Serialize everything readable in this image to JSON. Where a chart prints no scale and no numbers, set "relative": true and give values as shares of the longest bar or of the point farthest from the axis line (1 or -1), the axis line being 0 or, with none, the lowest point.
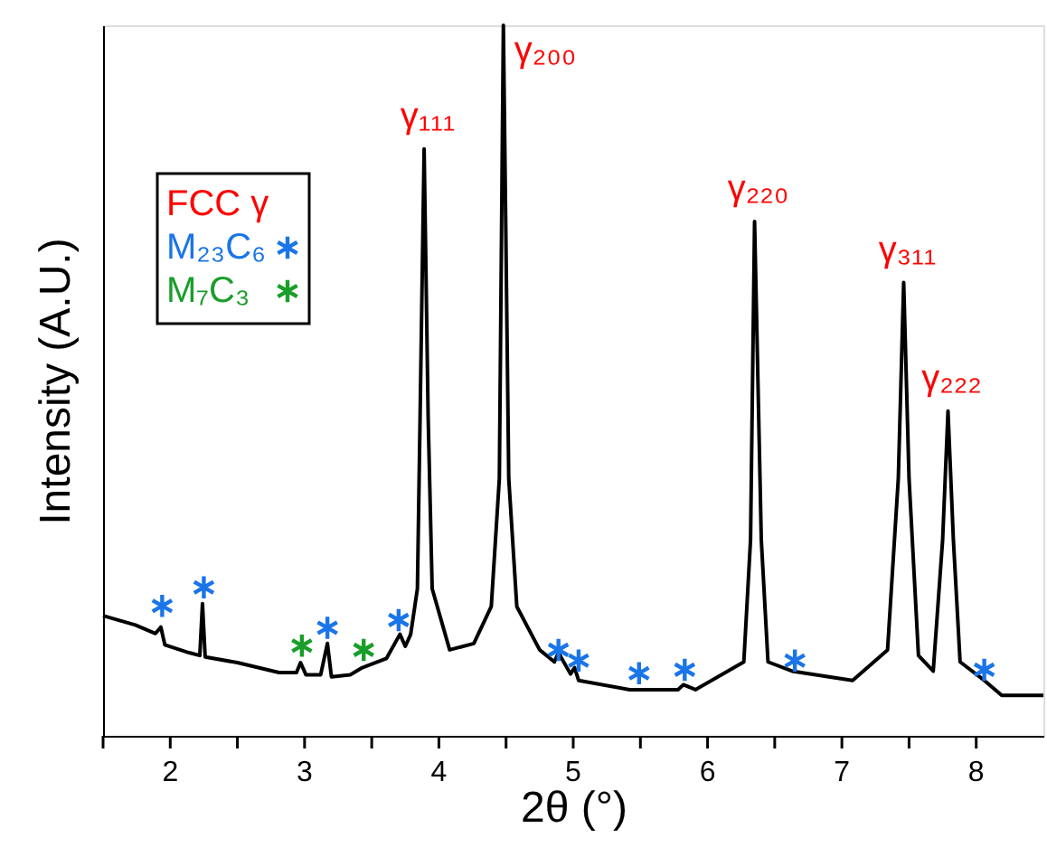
{
  "chart_data": {
    "type": "line",
    "xlabel": "2θ (°)",
    "ylabel": "Intensity (A.U.)",
    "relative": true,
    "xlim": [
      1.5,
      8.5
    ],
    "xticks": [
      {
        "value": 1.5,
        "label": null
      },
      2,
      {
        "value": 2.5,
        "label": null
      },
      3,
      {
        "value": 3.5,
        "label": null
      },
      4,
      {
        "value": 4.5,
        "label": null
      },
      5,
      {
        "value": 5.5,
        "label": null
      },
      6,
      {
        "value": 6.5,
        "label": null
      },
      7,
      {
        "value": 7.5,
        "label": null
      },
      8
    ],
    "legend": "top left",
    "annotations": [
      "FCC γ",
      {
        "text": "γ₁₁₁",
        "x": 3.89,
        "y": 0.826
      },
      {
        "text": "γ₂₀₀",
        "x": 4.48,
        "y": 1.0
      },
      {
        "text": "γ₂₂₀",
        "x": 6.35,
        "y": 0.724
      },
      {
        "text": "γ₃₁₁",
        "x": 7.46,
        "y": 0.638
      },
      {
        "text": "γ₂₂₂",
        "x": 7.79,
        "y": 0.457
      }
    ],
    "grid": false,
    "line_style": "solid",
    "series": [
      {
        "color": "#000000",
        "x": [
          1.5,
          1.74,
          1.89,
          1.93,
          1.96,
          2.14,
          2.22,
          2.24,
          2.26,
          2.5,
          2.81,
          2.94,
          2.97,
          3.01,
          3.12,
          3.17,
          3.2,
          3.34,
          3.43,
          3.61,
          3.71,
          3.75,
          3.79,
          3.84,
          3.86,
          3.89,
          3.92,
          3.95,
          4.08,
          4.26,
          4.39,
          4.45,
          4.48,
          4.52,
          4.58,
          4.75,
          4.86,
          4.89,
          4.98,
          5.01,
          5.04,
          5.42,
          5.78,
          5.82,
          5.91,
          6.27,
          6.32,
          6.35,
          6.4,
          6.45,
          6.63,
          7.08,
          7.34,
          7.42,
          7.46,
          7.5,
          7.57,
          7.68,
          7.75,
          7.79,
          7.83,
          7.88,
          8.06,
          8.19,
          8.5
        ],
        "values": [
          0.169,
          0.156,
          0.144,
          0.153,
          0.128,
          0.117,
          0.113,
          0.186,
          0.111,
          0.103,
          0.089,
          0.089,
          0.103,
          0.086,
          0.086,
          0.13,
          0.083,
          0.086,
          0.096,
          0.109,
          0.143,
          0.126,
          0.143,
          0.207,
          0.449,
          0.826,
          0.449,
          0.207,
          0.121,
          0.13,
          0.182,
          0.362,
          1.0,
          0.362,
          0.182,
          0.121,
          0.104,
          0.117,
          0.087,
          0.096,
          0.078,
          0.065,
          0.065,
          0.072,
          0.065,
          0.104,
          0.276,
          0.724,
          0.276,
          0.104,
          0.091,
          0.078,
          0.121,
          0.362,
          0.638,
          0.362,
          0.113,
          0.091,
          0.276,
          0.457,
          0.276,
          0.104,
          0.078,
          0.057,
          0.057
        ]
      },
      {
        "name": "M₂₃C₆",
        "type": "scatter",
        "marker": "cross",
        "color": "#1a75e8",
        "x": [
          1.94,
          2.25,
          3.17,
          3.7,
          4.89,
          5.04,
          5.49,
          5.83,
          6.65,
          8.06
        ],
        "values": [
          0.183,
          0.209,
          0.152,
          0.163,
          0.121,
          0.106,
          0.088,
          0.093,
          0.106,
          0.093
        ]
      },
      {
        "name": "M₇C₃",
        "type": "scatter",
        "marker": "cross",
        "color": "#1a9e2a",
        "x": [
          2.98,
          3.44
        ],
        "values": [
          0.127,
          0.121
        ]
      }
    ]
  }
}
